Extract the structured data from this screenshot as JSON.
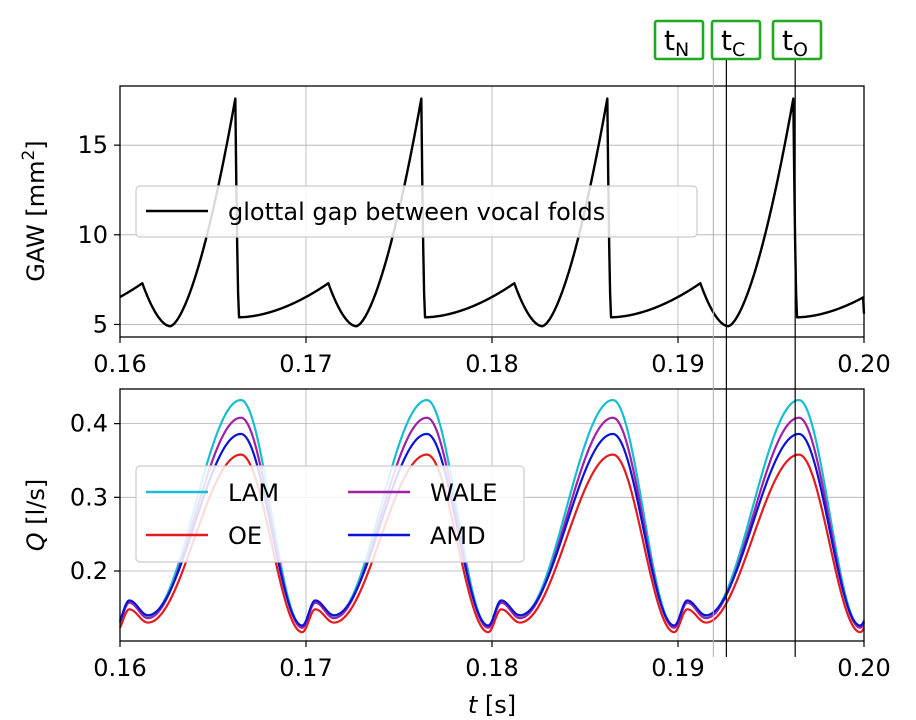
{
  "chart_data": [
    {
      "type": "line",
      "id": "gaw",
      "ylabel": "GAW [mm²]",
      "ylabel_main": "GAW [mm",
      "ylabel_sup": "2",
      "ylabel_tail": "]",
      "xlim": [
        0.16,
        0.2
      ],
      "ylim": [
        4.3,
        18.3
      ],
      "xticks": [
        0.16,
        0.17,
        0.18,
        0.19,
        0.2
      ],
      "xtick_labels": [
        "0.16",
        "0.17",
        "0.18",
        "0.19",
        "0.20"
      ],
      "yticks": [
        5,
        10,
        15
      ],
      "ytick_labels": [
        "5",
        "10",
        "15"
      ],
      "grid": true,
      "legend_position": "center-left",
      "series": [
        {
          "name": "glottal gap between vocal folds",
          "color": "#000000",
          "period": 0.01,
          "phase_start": 0.1564,
          "base_value": 5.4,
          "minor_peak_time": 0.1612,
          "minor_peak_value": 7.3,
          "minimum_time": 0.1627,
          "minimum_value": 4.9,
          "major_peak_time": 0.1662,
          "major_peak_value": 17.6,
          "end_value": 5.6
        }
      ]
    },
    {
      "type": "line",
      "id": "flow",
      "xlabel": "t [s]",
      "xlabel_var": "t",
      "xlabel_unit": " [s]",
      "ylabel": "Q [l/s]",
      "ylabel_var": "Q",
      "ylabel_unit": " [l/s]",
      "xlim": [
        0.16,
        0.2
      ],
      "ylim": [
        0.105,
        0.447
      ],
      "xticks": [
        0.16,
        0.17,
        0.18,
        0.19,
        0.2
      ],
      "xtick_labels": [
        "0.16",
        "0.17",
        "0.18",
        "0.19",
        "0.20"
      ],
      "yticks": [
        0.2,
        0.3,
        0.4
      ],
      "ytick_labels": [
        "0.2",
        "0.3",
        "0.4"
      ],
      "grid": true,
      "legend_position": "center-left",
      "legend_columns": 2,
      "series": [
        {
          "name": "LAM",
          "color": "#17becf",
          "minimum": 0.125,
          "minor_peak": 0.16,
          "minor_dip": 0.138,
          "peak": 0.432
        },
        {
          "name": "OE",
          "color": "#e41a1c",
          "minimum": 0.117,
          "minor_peak": 0.148,
          "minor_dip": 0.13,
          "peak": 0.358
        },
        {
          "name": "WALE",
          "color": "#a020a8",
          "minimum": 0.123,
          "minor_peak": 0.157,
          "minor_dip": 0.136,
          "peak": 0.408
        },
        {
          "name": "AMD",
          "color": "#0a14d4",
          "minimum": 0.126,
          "minor_peak": 0.16,
          "minor_dip": 0.14,
          "peak": 0.386
        }
      ]
    }
  ],
  "time_markers": [
    {
      "label_base": "t",
      "label_sub": "N",
      "time": 0.1919,
      "color": "#1faa1f",
      "line_color": "#b0b0b0"
    },
    {
      "label_base": "t",
      "label_sub": "C",
      "time": 0.1926,
      "color": "#1faa1f",
      "line_color": "#000000"
    },
    {
      "label_base": "t",
      "label_sub": "O",
      "time": 0.1963,
      "color": "#1faa1f",
      "line_color": "#000000"
    }
  ]
}
